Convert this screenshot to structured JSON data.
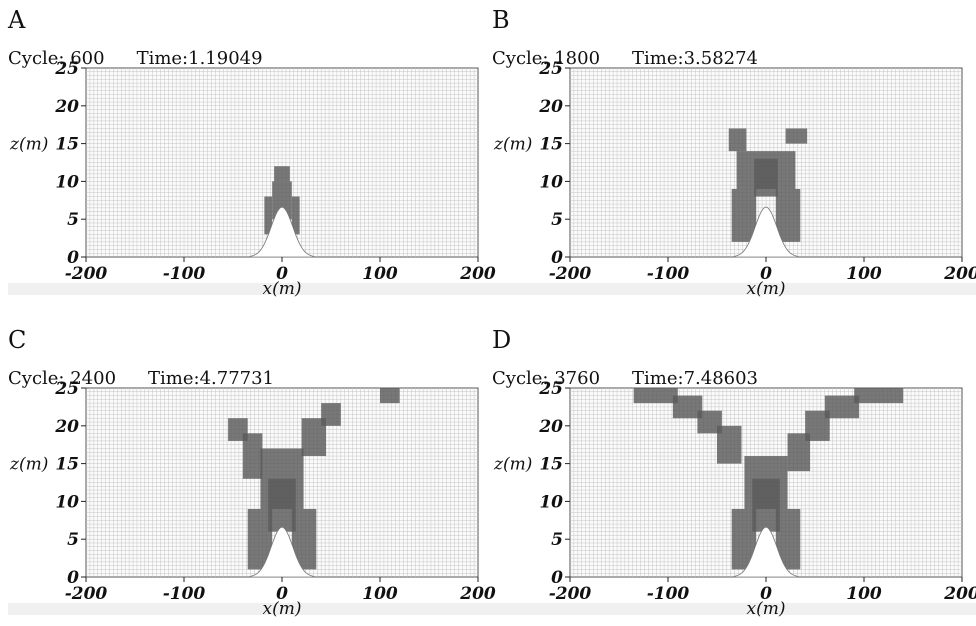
{
  "chart_data": [
    {
      "panel": "A",
      "type": "heatmap",
      "cycle_label": "Cycle: 600",
      "time_label": "Time:1.19049",
      "xlabel": "x(m)",
      "ylabel": "z(m)",
      "xlim": [
        -200,
        200
      ],
      "ylim": [
        0,
        25
      ],
      "xticks": [
        -200,
        -100,
        0,
        100,
        200
      ],
      "yticks": [
        0,
        5,
        10,
        15,
        20,
        25
      ],
      "grid": true,
      "dark_cells": [
        {
          "x": [
            -10,
            10
          ],
          "z": [
            5,
            10
          ]
        },
        {
          "x": [
            -8,
            8
          ],
          "z": [
            10,
            12
          ]
        },
        {
          "x": [
            -18,
            -10
          ],
          "z": [
            3,
            8
          ]
        },
        {
          "x": [
            10,
            18
          ],
          "z": [
            3,
            8
          ]
        }
      ]
    },
    {
      "panel": "B",
      "type": "heatmap",
      "cycle_label": "Cycle: 1800",
      "time_label": "Time:3.58274",
      "xlabel": "x(m)",
      "ylabel": "z(m)",
      "xlim": [
        -200,
        200
      ],
      "ylim": [
        0,
        25
      ],
      "xticks": [
        -200,
        -100,
        0,
        100,
        200
      ],
      "yticks": [
        0,
        5,
        10,
        15,
        20,
        25
      ],
      "grid": true,
      "dark_cells": [
        {
          "x": [
            -38,
            -20
          ],
          "z": [
            14,
            17
          ]
        },
        {
          "x": [
            20,
            42
          ],
          "z": [
            15,
            17
          ]
        },
        {
          "x": [
            -30,
            30
          ],
          "z": [
            9,
            14
          ]
        },
        {
          "x": [
            -35,
            -10
          ],
          "z": [
            2,
            9
          ]
        },
        {
          "x": [
            10,
            35
          ],
          "z": [
            2,
            9
          ]
        },
        {
          "x": [
            -12,
            12
          ],
          "z": [
            8,
            13
          ]
        }
      ]
    },
    {
      "panel": "C",
      "type": "heatmap",
      "cycle_label": "Cycle: 2400",
      "time_label": "Time:4.77731",
      "xlabel": "x(m)",
      "ylabel": "z(m)",
      "xlim": [
        -200,
        200
      ],
      "ylim": [
        0,
        25
      ],
      "xticks": [
        -200,
        -100,
        0,
        100,
        200
      ],
      "yticks": [
        0,
        5,
        10,
        15,
        20,
        25
      ],
      "grid": true,
      "dark_cells": [
        {
          "x": [
            -55,
            -35
          ],
          "z": [
            18,
            21
          ]
        },
        {
          "x": [
            -40,
            -20
          ],
          "z": [
            13,
            19
          ]
        },
        {
          "x": [
            20,
            45
          ],
          "z": [
            16,
            21
          ]
        },
        {
          "x": [
            40,
            60
          ],
          "z": [
            20,
            23
          ]
        },
        {
          "x": [
            100,
            120
          ],
          "z": [
            23,
            25
          ]
        },
        {
          "x": [
            -22,
            22
          ],
          "z": [
            9,
            17
          ]
        },
        {
          "x": [
            -35,
            -10
          ],
          "z": [
            1,
            9
          ]
        },
        {
          "x": [
            10,
            35
          ],
          "z": [
            1,
            9
          ]
        },
        {
          "x": [
            -14,
            14
          ],
          "z": [
            6,
            13
          ]
        }
      ]
    },
    {
      "panel": "D",
      "type": "heatmap",
      "cycle_label": "Cycle: 3760",
      "time_label": "Time:7.48603",
      "xlabel": "x(m)",
      "ylabel": "z(m)",
      "xlim": [
        -200,
        200
      ],
      "ylim": [
        0,
        25
      ],
      "xticks": [
        -200,
        -100,
        0,
        100,
        200
      ],
      "yticks": [
        0,
        5,
        10,
        15,
        20,
        25
      ],
      "grid": true,
      "dark_cells": [
        {
          "x": [
            -135,
            -90
          ],
          "z": [
            23,
            25
          ]
        },
        {
          "x": [
            -95,
            -65
          ],
          "z": [
            21,
            24
          ]
        },
        {
          "x": [
            -70,
            -45
          ],
          "z": [
            19,
            22
          ]
        },
        {
          "x": [
            -50,
            -25
          ],
          "z": [
            15,
            20
          ]
        },
        {
          "x": [
            90,
            140
          ],
          "z": [
            23,
            25
          ]
        },
        {
          "x": [
            60,
            95
          ],
          "z": [
            21,
            24
          ]
        },
        {
          "x": [
            40,
            65
          ],
          "z": [
            18,
            22
          ]
        },
        {
          "x": [
            22,
            45
          ],
          "z": [
            14,
            19
          ]
        },
        {
          "x": [
            -22,
            22
          ],
          "z": [
            9,
            16
          ]
        },
        {
          "x": [
            -35,
            -10
          ],
          "z": [
            1,
            9
          ]
        },
        {
          "x": [
            10,
            35
          ],
          "z": [
            1,
            9
          ]
        },
        {
          "x": [
            -14,
            14
          ],
          "z": [
            6,
            13
          ]
        }
      ]
    }
  ]
}
